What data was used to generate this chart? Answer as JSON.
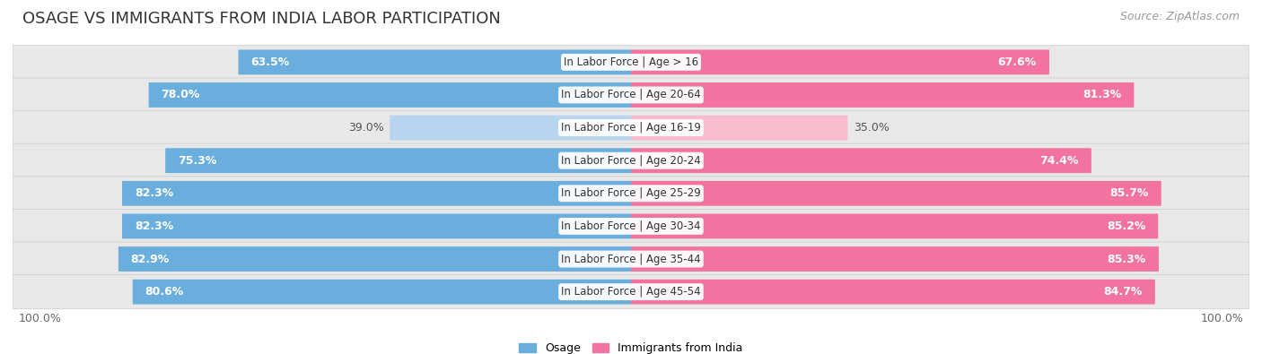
{
  "title": "OSAGE VS IMMIGRANTS FROM INDIA LABOR PARTICIPATION",
  "source": "Source: ZipAtlas.com",
  "categories": [
    "In Labor Force | Age > 16",
    "In Labor Force | Age 20-64",
    "In Labor Force | Age 16-19",
    "In Labor Force | Age 20-24",
    "In Labor Force | Age 25-29",
    "In Labor Force | Age 30-34",
    "In Labor Force | Age 35-44",
    "In Labor Force | Age 45-54"
  ],
  "osage_values": [
    63.5,
    78.0,
    39.0,
    75.3,
    82.3,
    82.3,
    82.9,
    80.6
  ],
  "india_values": [
    67.6,
    81.3,
    35.0,
    74.4,
    85.7,
    85.2,
    85.3,
    84.7
  ],
  "osage_color": "#6AAEDE",
  "osage_color_light": "#B8D5EF",
  "india_color": "#F272A0",
  "india_color_light": "#F9BBCE",
  "row_bg_color": "#E8E8E8",
  "label_color_dark": "#555555",
  "label_color_white": "#FFFFFF",
  "max_value": 100.0,
  "title_fontsize": 13,
  "source_fontsize": 9,
  "bar_label_fontsize": 9,
  "category_label_fontsize": 8.5,
  "legend_fontsize": 9,
  "axis_label_fontsize": 9
}
